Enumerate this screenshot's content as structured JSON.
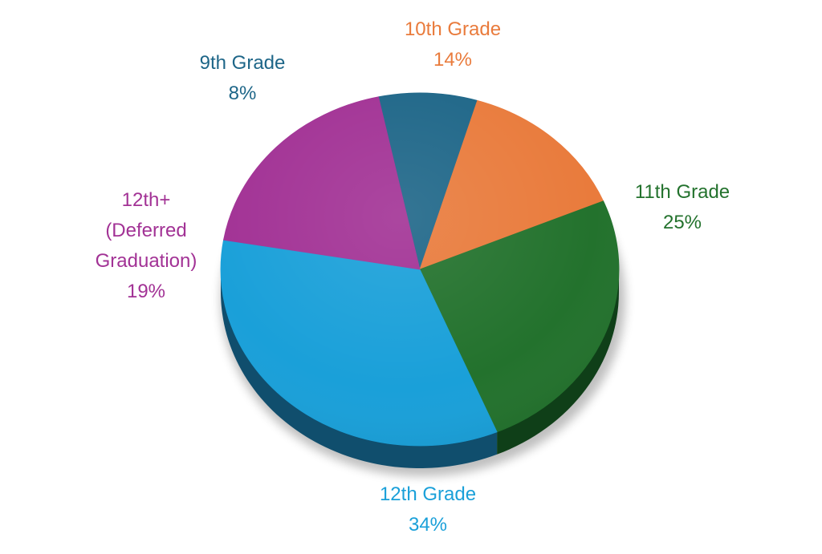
{
  "chart_data": {
    "type": "pie",
    "title": "",
    "slices": [
      {
        "key": "grade9",
        "label_lines": [
          "9th Grade"
        ],
        "percent_label": "8%",
        "value": 8,
        "color": "#1e6688",
        "side_color": "#124860"
      },
      {
        "key": "grade10",
        "label_lines": [
          "10th Grade"
        ],
        "percent_label": "14%",
        "value": 14,
        "color": "#e97b3c",
        "side_color": "#a5532a"
      },
      {
        "key": "grade11",
        "label_lines": [
          "11th Grade"
        ],
        "percent_label": "25%",
        "value": 25,
        "color": "#23722d",
        "side_color": "#0f3f18"
      },
      {
        "key": "grade12",
        "label_lines": [
          "12th Grade"
        ],
        "percent_label": "34%",
        "value": 34,
        "color": "#1aa0d9",
        "side_color": "#104e6d"
      },
      {
        "key": "grade12plus",
        "label_lines": [
          "12th+",
          "(Deferred",
          "Graduation)"
        ],
        "percent_label": "19%",
        "value": 19,
        "color": "#a23295",
        "side_color": "#6a1f63"
      }
    ]
  }
}
